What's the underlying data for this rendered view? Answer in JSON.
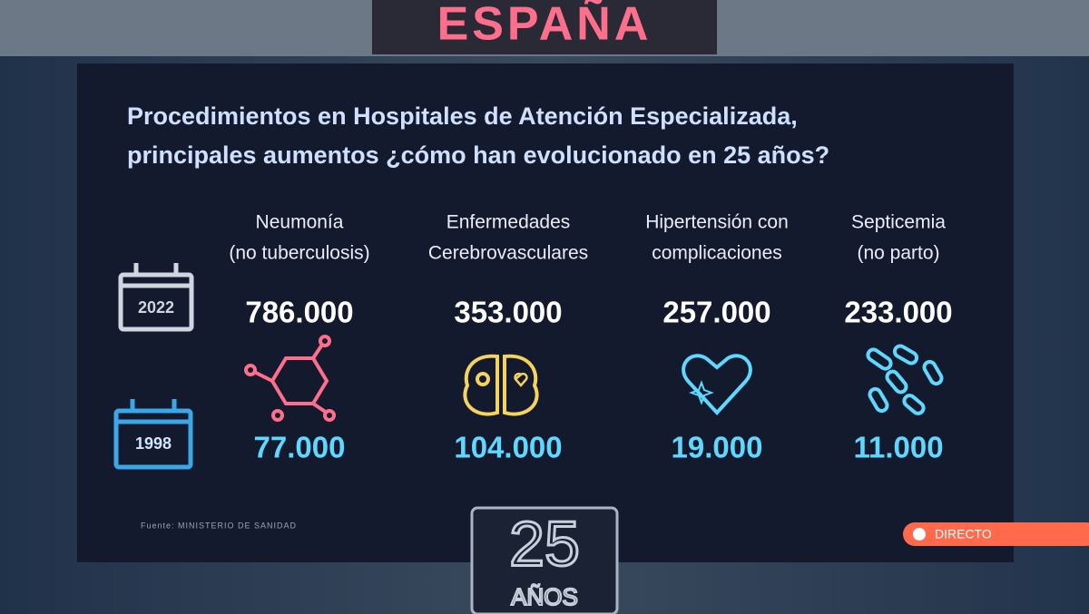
{
  "header": {
    "logo": "ESPAÑA",
    "title_lines": [
      "Procedimientos en Hospitales de Atención Especializada,",
      "principales aumentos ¿cómo han evolucionado en 25 años?"
    ]
  },
  "years": [
    "2022",
    "1998"
  ],
  "columns": [
    {
      "label_lines": [
        "Neumonía",
        "(no tuberculosis)"
      ],
      "value_2022": "786.000",
      "value_1998": "77.000"
    },
    {
      "label_lines": [
        "Enfermedades",
        "Cerebrovasculares"
      ],
      "value_2022": "353.000",
      "value_1998": "104.000"
    },
    {
      "label_lines": [
        "Hipertensión con",
        "complicaciones"
      ],
      "value_2022": "257.000",
      "value_1998": "19.000"
    },
    {
      "label_lines": [
        "Septicemia",
        "(no parto)"
      ],
      "value_2022": "233.000",
      "value_1998": "11.000"
    }
  ],
  "source": "Fuente: MINISTERIO DE SANIDAD",
  "live_badge": "DIRECTO",
  "anniversary": {
    "number": "25",
    "word": "AÑOS"
  }
}
